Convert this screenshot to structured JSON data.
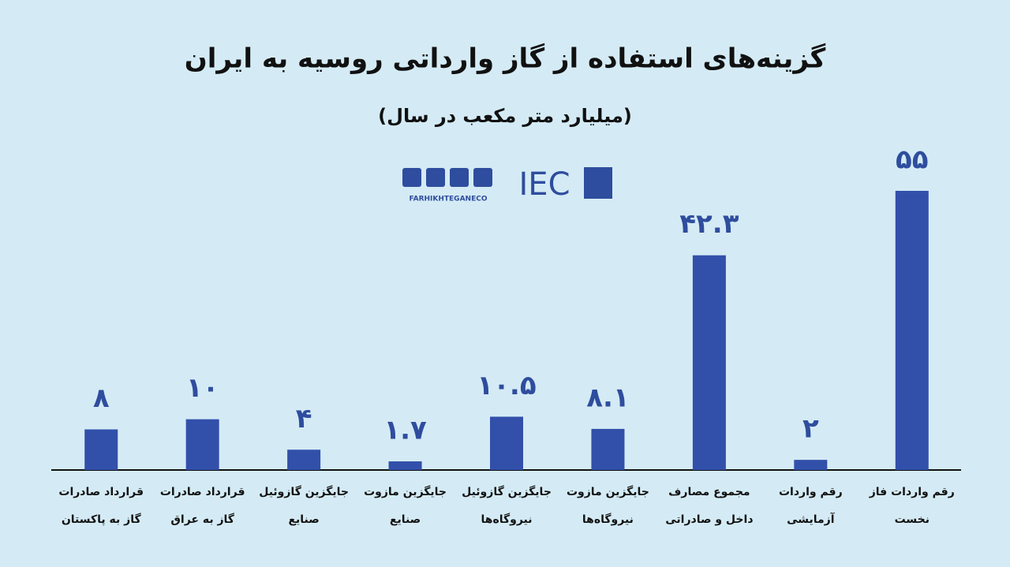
{
  "chart_data": {
    "type": "bar",
    "title": "گزینه‌های استفاده از گاز وارداتی روسیه به ایران",
    "subtitle": "(میلیارد متر مکعب در سال)",
    "logo_text": "FARHIKHTEGANECO",
    "logo_mark": "IEC",
    "categories": [
      [
        "قرارداد صادرات",
        "گاز به پاکستان"
      ],
      [
        "قرارداد صادرات",
        "گاز به عراق"
      ],
      [
        "جایگزین گازوئیل",
        "صنایع"
      ],
      [
        "جایگزین مازوت",
        "صنایع"
      ],
      [
        "جایگزین گازوئیل",
        "نیروگاه‌ها"
      ],
      [
        "جایگزین مازوت",
        "نیروگاه‌ها"
      ],
      [
        "مجموع مصارف",
        "داخل و صادراتی"
      ],
      [
        "رقم واردات",
        "آزمایشی"
      ],
      [
        "رقم واردات فاز",
        "نخست"
      ]
    ],
    "values": [
      8,
      10,
      4,
      1.7,
      10.5,
      8.1,
      42.3,
      2,
      55
    ],
    "value_labels": [
      "۸",
      "۱۰",
      "۴",
      "۱.۷",
      "۱۰.۵",
      "۸.۱",
      "۴۲.۳",
      "۲",
      "۵۵"
    ],
    "color": "#3250aa",
    "ylim": [
      0,
      55
    ]
  }
}
